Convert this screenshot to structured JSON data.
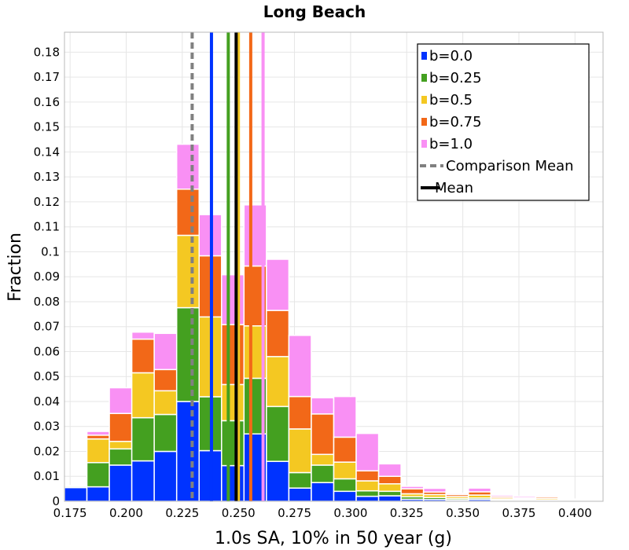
{
  "chart_data": {
    "type": "bar",
    "stacked": true,
    "title": "Long Beach",
    "xlabel": "1.0s SA, 10% in 50 year (g)",
    "ylabel": "Fraction",
    "xlim": [
      0.1725,
      0.4125
    ],
    "ylim": [
      0,
      0.188
    ],
    "grid": true,
    "legend_position": "top-right",
    "x_ticks": [
      "0.175",
      "0.200",
      "0.225",
      "0.250",
      "0.275",
      "0.300",
      "0.325",
      "0.350",
      "0.375",
      "0.400"
    ],
    "y_ticks": [
      "0",
      "0.01",
      "0.02",
      "0.03",
      "0.04",
      "0.05",
      "0.06",
      "0.07",
      "0.08",
      "0.09",
      "0.1",
      "0.11",
      "0.12",
      "0.13",
      "0.14",
      "0.15",
      "0.16",
      "0.17",
      "0.18"
    ],
    "bin_width": 0.01,
    "bin_starts": [
      0.1725,
      0.1825,
      0.1925,
      0.2025,
      0.2125,
      0.2225,
      0.2325,
      0.2425,
      0.2525,
      0.2625,
      0.2725,
      0.2825,
      0.2925,
      0.3025,
      0.3125,
      0.3225,
      0.3325,
      0.3425,
      0.3525,
      0.3625,
      0.3725,
      0.3825,
      0.3925,
      0.4025
    ],
    "series": [
      {
        "name": "b=0.0",
        "color": "#0033ff",
        "values": [
          0.0055,
          0.0058,
          0.0145,
          0.0162,
          0.02,
          0.04,
          0.0203,
          0.0143,
          0.027,
          0.016,
          0.0053,
          0.0075,
          0.004,
          0.002,
          0.0022,
          0.0008,
          0.0007,
          0.0005,
          0.0007,
          0.0003,
          0.0003,
          0.0003,
          0.0001,
          0.0001
        ]
      },
      {
        "name": "b=0.25",
        "color": "#44a020",
        "values": [
          0.0005,
          0.0097,
          0.0065,
          0.0173,
          0.0148,
          0.0376,
          0.0216,
          0.018,
          0.0223,
          0.022,
          0.0062,
          0.007,
          0.005,
          0.0022,
          0.0018,
          0.001,
          0.0008,
          0.0006,
          0.0006,
          0.0004,
          0.0004,
          0.0003,
          0.0002,
          0.0001
        ]
      },
      {
        "name": "b=0.5",
        "color": "#f4c822",
        "values": [
          0.0001,
          0.0095,
          0.003,
          0.018,
          0.0095,
          0.029,
          0.032,
          0.0145,
          0.021,
          0.02,
          0.0175,
          0.0043,
          0.0067,
          0.004,
          0.003,
          0.0012,
          0.0012,
          0.0008,
          0.0012,
          0.0006,
          0.0004,
          0.0006,
          0.0002,
          0.0001
        ]
      },
      {
        "name": "b=0.75",
        "color": "#f26818",
        "values": [
          0.0001,
          0.0015,
          0.0112,
          0.0135,
          0.0085,
          0.0185,
          0.0245,
          0.024,
          0.024,
          0.0185,
          0.013,
          0.0162,
          0.01,
          0.004,
          0.003,
          0.002,
          0.001,
          0.0008,
          0.0013,
          0.0006,
          0.0003,
          0.0006,
          0.0002,
          0.0001
        ]
      },
      {
        "name": "b=1.0",
        "color": "#f990f4",
        "values": [
          0.0001,
          0.0015,
          0.0103,
          0.0028,
          0.0145,
          0.018,
          0.0165,
          0.02,
          0.0245,
          0.0205,
          0.0245,
          0.0065,
          0.0163,
          0.015,
          0.005,
          0.001,
          0.0015,
          0.0005,
          0.0015,
          0.0006,
          0.0006,
          0.0005,
          0.0002,
          0.0001
        ]
      }
    ],
    "vertical_lines": [
      {
        "x": 0.2294,
        "color": "#808080",
        "style": "dashed",
        "series": "Comparison Mean"
      },
      {
        "x": 0.238,
        "color": "#0033ff",
        "style": "solid",
        "series": "b=0.0"
      },
      {
        "x": 0.2455,
        "color": "#44a020",
        "style": "solid",
        "series": "b=0.25"
      },
      {
        "x": 0.25,
        "color": "#f4c822",
        "style": "solid",
        "series": "b=0.5"
      },
      {
        "x": 0.249,
        "color": "#000000",
        "style": "solid",
        "series": "Mean"
      },
      {
        "x": 0.2555,
        "color": "#f26818",
        "style": "solid",
        "series": "b=0.75"
      },
      {
        "x": 0.261,
        "color": "#f990f4",
        "style": "solid",
        "series": "b=1.0"
      }
    ],
    "legend": [
      {
        "label": "b=0.0",
        "color": "#0033ff",
        "kind": "box"
      },
      {
        "label": "b=0.25",
        "color": "#44a020",
        "kind": "box"
      },
      {
        "label": "b=0.5",
        "color": "#f4c822",
        "kind": "box"
      },
      {
        "label": "b=0.75",
        "color": "#f26818",
        "kind": "box"
      },
      {
        "label": "b=1.0",
        "color": "#f990f4",
        "kind": "box"
      },
      {
        "label": "Comparison Mean",
        "color": "#808080",
        "kind": "dashed"
      },
      {
        "label": "Mean",
        "color": "#000000",
        "kind": "line"
      }
    ]
  }
}
